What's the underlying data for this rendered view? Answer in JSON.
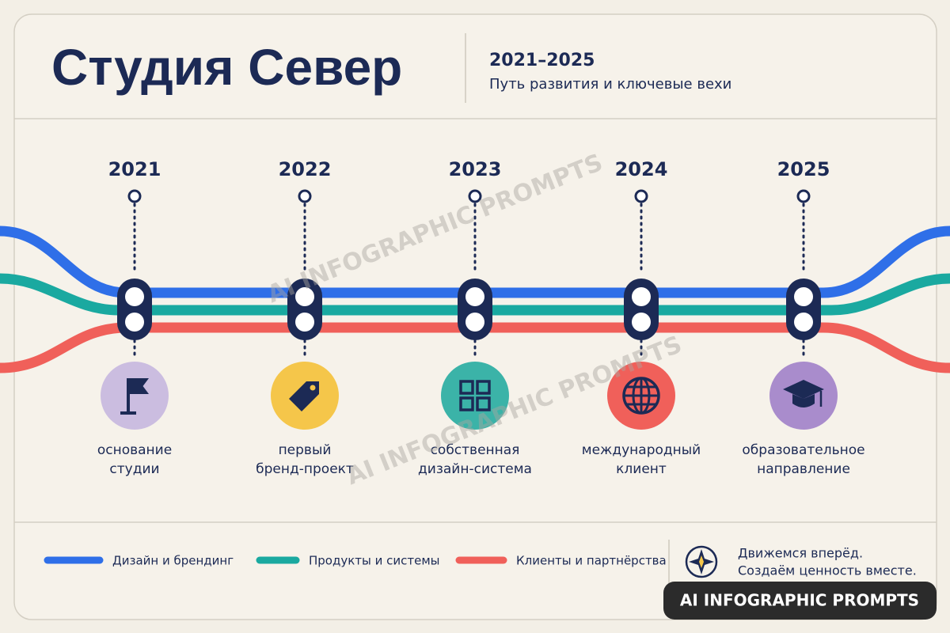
{
  "header": {
    "title": "Студия Север",
    "years": "2021–2025",
    "subtitle": "Путь развития и ключевые вехи"
  },
  "milestones": [
    {
      "year": "2021",
      "label": [
        "основание",
        "студии"
      ]
    },
    {
      "year": "2022",
      "label": [
        "первый",
        "бренд-проект"
      ]
    },
    {
      "year": "2023",
      "label": [
        "собственная",
        "дизайн-система"
      ]
    },
    {
      "year": "2024",
      "label": [
        "международный",
        "клиент"
      ]
    },
    {
      "year": "2025",
      "label": [
        "образовательное",
        "направление"
      ]
    }
  ],
  "legend": [
    "Дизайн и брендинг",
    "Продукты и системы",
    "Клиенты и партнёрства"
  ],
  "motto": [
    "Движемся вперёд.",
    "Создаём ценность вместе."
  ],
  "watermark": "AI INFOGRAPHIC PROMPTS"
}
